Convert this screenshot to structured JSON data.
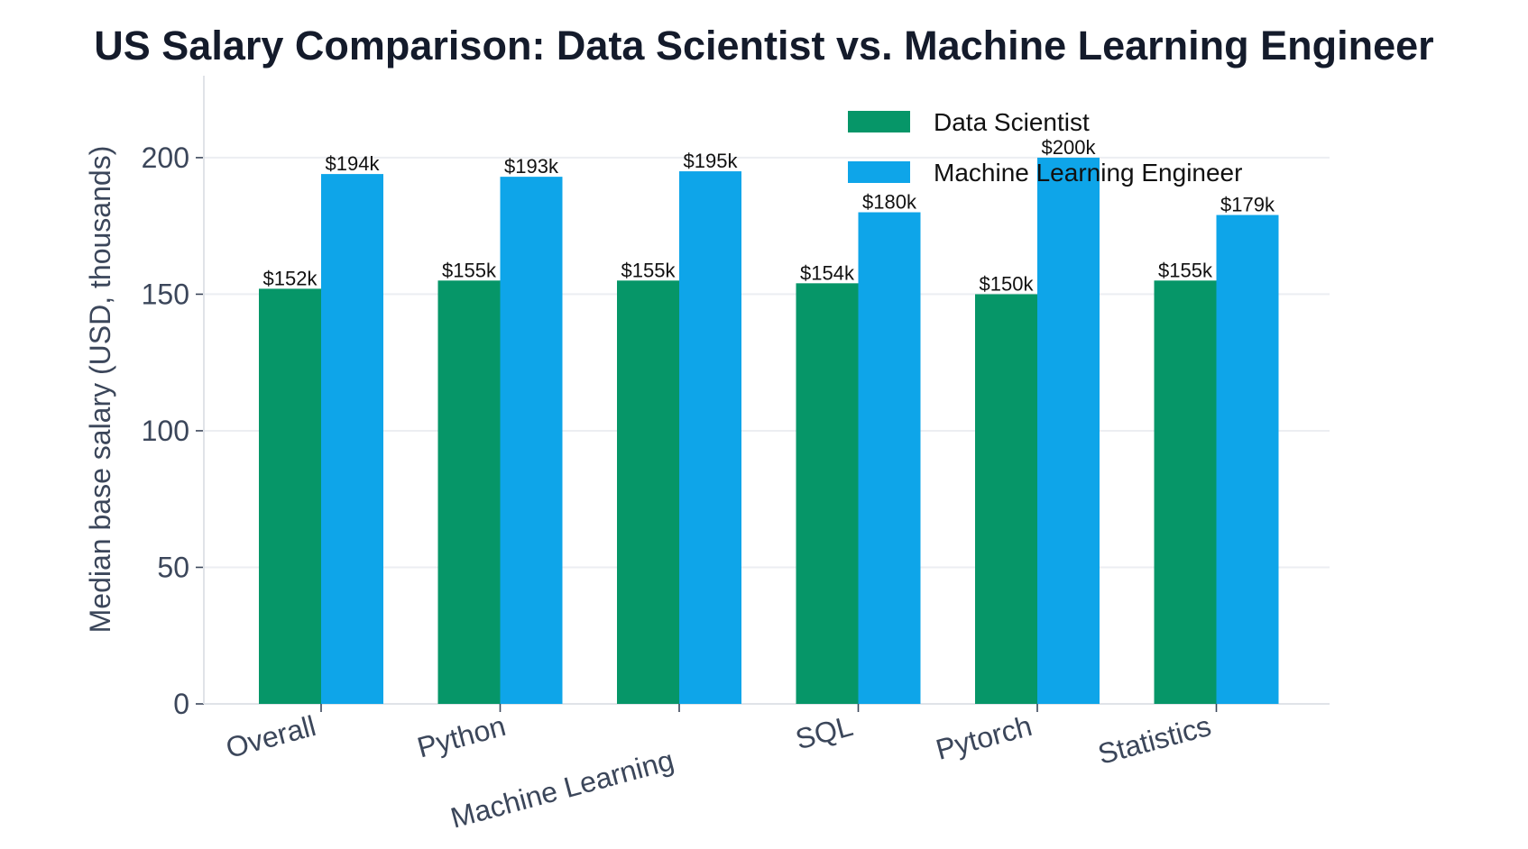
{
  "chart_data": {
    "type": "bar",
    "title": "US Salary Comparison: Data Scientist vs. Machine Learning Engineer",
    "xlabel": "",
    "ylabel": "Median base salary (USD, thousands)",
    "ylim": [
      0,
      230
    ],
    "yticks": [
      0,
      50,
      100,
      150,
      200
    ],
    "grid": "horizontal",
    "legend_position": "top-right",
    "categories": [
      "Overall",
      "Python",
      "Machine Learning",
      "SQL",
      "Pytorch",
      "Statistics"
    ],
    "series": [
      {
        "name": "Data Scientist",
        "color": "#069668",
        "values": [
          152,
          155,
          155,
          154,
          150,
          155
        ],
        "labels": [
          "$152k",
          "$155k",
          "$155k",
          "$154k",
          "$150k",
          "$155k"
        ]
      },
      {
        "name": "Machine Learning Engineer",
        "color": "#0ea5e9",
        "values": [
          194,
          193,
          195,
          180,
          200,
          179
        ],
        "labels": [
          "$194k",
          "$193k",
          "$195k",
          "$180k",
          "$200k",
          "$179k"
        ]
      }
    ]
  }
}
